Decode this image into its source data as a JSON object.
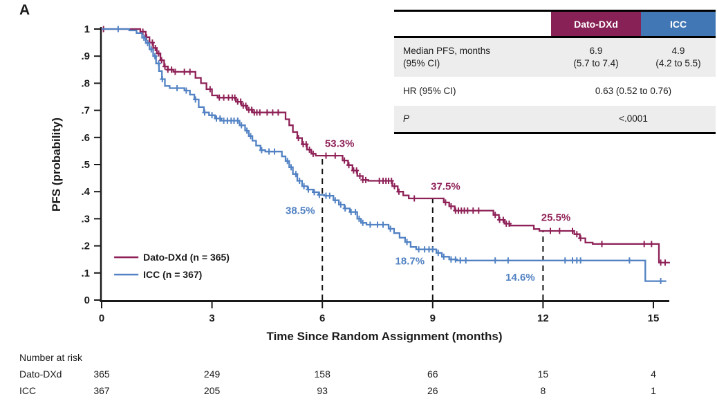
{
  "panel_label": "A",
  "colors": {
    "dato_line": "#8E2157",
    "icc_line": "#5282C3",
    "dato_header_bg": "#882155",
    "icc_header_bg": "#4277B5",
    "shaded_row_bg": "#EDEDED",
    "axis": "#1a1a1a",
    "dashed_line": "#111111"
  },
  "stats_table": {
    "header": {
      "dato": "Dato-DXd",
      "icc": "ICC"
    },
    "median_row": {
      "label_line1": "Median PFS, months",
      "label_line2": "(95% CI)",
      "dato_line1": "6.9",
      "dato_line2": "(5.7 to 7.4)",
      "icc_line1": "4.9",
      "icc_line2": "(4.2 to 5.5)"
    },
    "hr_row": {
      "label": "HR (95% CI)",
      "value": "0.63 (0.52 to 0.76)"
    },
    "p_row": {
      "label": "P",
      "value": "<.0001"
    }
  },
  "risk_table": {
    "title": "Number at risk",
    "rows": [
      {
        "label": "Dato-DXd",
        "values": [
          365,
          249,
          158,
          66,
          15,
          4
        ]
      },
      {
        "label": "ICC",
        "values": [
          367,
          205,
          93,
          26,
          8,
          1
        ]
      }
    ]
  },
  "chart_data": {
    "type": "line",
    "subtype": "kaplan-meier-step",
    "title": "",
    "xlabel": "Time Since Random Assignment (months)",
    "ylabel": "PFS (probability)",
    "xlim": [
      0,
      15.6
    ],
    "ylim": [
      0,
      1
    ],
    "grid": false,
    "legend_position": "lower-left-inside",
    "xticks": [
      0,
      3,
      6,
      9,
      12,
      15
    ],
    "yticks": [
      0,
      0.1,
      0.2,
      0.3,
      0.4,
      0.5,
      0.6,
      0.7,
      0.8,
      0.9,
      1
    ],
    "ytick_labels": [
      "0",
      ".1",
      ".2",
      ".3",
      ".4",
      ".5",
      ".6",
      ".7",
      ".8",
      ".9",
      "1"
    ],
    "reference_lines": [
      {
        "x": 6,
        "y_top": 0.533
      },
      {
        "x": 9,
        "y_top": 0.375
      },
      {
        "x": 12,
        "y_top": 0.255
      }
    ],
    "annotations": [
      {
        "label": "53.3%",
        "x": 6.07,
        "y": 0.565,
        "anchor": "start",
        "series": "dato"
      },
      {
        "label": "37.5%",
        "x": 8.95,
        "y": 0.407,
        "anchor": "start",
        "series": "dato"
      },
      {
        "label": "25.5%",
        "x": 11.95,
        "y": 0.292,
        "anchor": "start",
        "series": "dato"
      },
      {
        "label": "38.5%",
        "x": 5.8,
        "y": 0.318,
        "anchor": "end",
        "series": "icc"
      },
      {
        "label": "18.7%",
        "x": 8.78,
        "y": 0.131,
        "anchor": "end",
        "series": "icc"
      },
      {
        "label": "14.6%",
        "x": 11.78,
        "y": 0.072,
        "anchor": "end",
        "series": "icc"
      }
    ],
    "series": [
      {
        "id": "dato",
        "name": "Dato-DXd (n = 365)",
        "color": "#8E2157",
        "landmark_estimates": {
          "6_months": 0.533,
          "9_months": 0.375,
          "12_months": 0.255
        },
        "points": [
          [
            0,
            1
          ],
          [
            1.05,
            1
          ],
          [
            1.05,
            0.99
          ],
          [
            1.2,
            0.99
          ],
          [
            1.2,
            0.97
          ],
          [
            1.3,
            0.97
          ],
          [
            1.3,
            0.95
          ],
          [
            1.4,
            0.95
          ],
          [
            1.4,
            0.93
          ],
          [
            1.5,
            0.93
          ],
          [
            1.5,
            0.91
          ],
          [
            1.6,
            0.91
          ],
          [
            1.6,
            0.885
          ],
          [
            1.7,
            0.885
          ],
          [
            1.7,
            0.862
          ],
          [
            1.8,
            0.862
          ],
          [
            1.8,
            0.85
          ],
          [
            1.95,
            0.85
          ],
          [
            1.95,
            0.842
          ],
          [
            2.55,
            0.842
          ],
          [
            2.55,
            0.82
          ],
          [
            2.7,
            0.82
          ],
          [
            2.7,
            0.8
          ],
          [
            2.85,
            0.8
          ],
          [
            2.85,
            0.778
          ],
          [
            3,
            0.778
          ],
          [
            3,
            0.755
          ],
          [
            3.15,
            0.755
          ],
          [
            3.15,
            0.747
          ],
          [
            3.65,
            0.747
          ],
          [
            3.65,
            0.732
          ],
          [
            3.8,
            0.732
          ],
          [
            3.8,
            0.717
          ],
          [
            3.95,
            0.717
          ],
          [
            3.95,
            0.702
          ],
          [
            4.1,
            0.702
          ],
          [
            4.1,
            0.692
          ],
          [
            5,
            0.692
          ],
          [
            5,
            0.667
          ],
          [
            5.1,
            0.667
          ],
          [
            5.1,
            0.645
          ],
          [
            5.2,
            0.645
          ],
          [
            5.2,
            0.62
          ],
          [
            5.32,
            0.62
          ],
          [
            5.32,
            0.598
          ],
          [
            5.45,
            0.598
          ],
          [
            5.45,
            0.575
          ],
          [
            5.58,
            0.575
          ],
          [
            5.58,
            0.555
          ],
          [
            5.7,
            0.555
          ],
          [
            5.7,
            0.54
          ],
          [
            5.82,
            0.54
          ],
          [
            5.82,
            0.533
          ],
          [
            6.55,
            0.533
          ],
          [
            6.55,
            0.515
          ],
          [
            6.7,
            0.515
          ],
          [
            6.7,
            0.498
          ],
          [
            6.82,
            0.498
          ],
          [
            6.82,
            0.478
          ],
          [
            6.95,
            0.478
          ],
          [
            6.95,
            0.458
          ],
          [
            7.1,
            0.458
          ],
          [
            7.1,
            0.443
          ],
          [
            7.25,
            0.443
          ],
          [
            7.25,
            0.44
          ],
          [
            7.9,
            0.44
          ],
          [
            7.9,
            0.42
          ],
          [
            8.05,
            0.42
          ],
          [
            8.05,
            0.4
          ],
          [
            8.2,
            0.4
          ],
          [
            8.2,
            0.386
          ],
          [
            8.35,
            0.386
          ],
          [
            8.35,
            0.375
          ],
          [
            9.3,
            0.375
          ],
          [
            9.3,
            0.36
          ],
          [
            9.45,
            0.36
          ],
          [
            9.45,
            0.346
          ],
          [
            9.6,
            0.346
          ],
          [
            9.6,
            0.33
          ],
          [
            10.65,
            0.33
          ],
          [
            10.65,
            0.314
          ],
          [
            10.8,
            0.314
          ],
          [
            10.8,
            0.296
          ],
          [
            10.95,
            0.296
          ],
          [
            10.95,
            0.282
          ],
          [
            11.1,
            0.282
          ],
          [
            11.1,
            0.275
          ],
          [
            11.75,
            0.275
          ],
          [
            11.75,
            0.262
          ],
          [
            11.9,
            0.262
          ],
          [
            11.9,
            0.255
          ],
          [
            12.85,
            0.255
          ],
          [
            12.85,
            0.243
          ],
          [
            13,
            0.243
          ],
          [
            13,
            0.228
          ],
          [
            13.15,
            0.228
          ],
          [
            13.15,
            0.212
          ],
          [
            13.35,
            0.212
          ],
          [
            13.35,
            0.207
          ],
          [
            15.15,
            0.207
          ],
          [
            15.15,
            0.138
          ],
          [
            15.45,
            0.138
          ]
        ],
        "censor_marks": [
          0.05,
          1.12,
          1.22,
          1.3,
          1.38,
          1.46,
          1.55,
          1.63,
          1.72,
          1.8,
          1.9,
          2.0,
          2.25,
          2.4,
          2.95,
          3.2,
          3.32,
          3.45,
          3.55,
          3.62,
          3.7,
          3.78,
          3.85,
          3.92,
          4.0,
          4.08,
          4.15,
          4.22,
          4.3,
          4.5,
          4.65,
          4.8,
          5.35,
          5.48,
          5.56,
          5.65,
          5.75,
          6.1,
          6.35,
          6.6,
          6.72,
          6.85,
          6.93,
          7.02,
          7.1,
          7.18,
          7.55,
          7.65,
          7.73,
          7.8,
          7.88,
          7.96,
          8.08,
          8.5,
          9.35,
          9.5,
          9.62,
          9.7,
          9.78,
          9.86,
          9.95,
          10.1,
          10.25,
          10.7,
          10.82,
          10.92,
          11.0,
          11.08,
          12.2,
          12.45,
          12.8,
          12.92,
          13.02,
          13.6,
          14.75,
          14.95,
          15.2,
          15.32
        ]
      },
      {
        "id": "icc",
        "name": "ICC (n = 367)",
        "color": "#5282C3",
        "landmark_estimates": {
          "6_months": 0.385,
          "9_months": 0.187,
          "12_months": 0.146
        },
        "points": [
          [
            0,
            1
          ],
          [
            0.75,
            1
          ],
          [
            0.75,
            0.995
          ],
          [
            0.95,
            0.995
          ],
          [
            0.95,
            0.985
          ],
          [
            1.1,
            0.985
          ],
          [
            1.1,
            0.968
          ],
          [
            1.2,
            0.968
          ],
          [
            1.2,
            0.948
          ],
          [
            1.3,
            0.948
          ],
          [
            1.3,
            0.925
          ],
          [
            1.4,
            0.925
          ],
          [
            1.4,
            0.9
          ],
          [
            1.48,
            0.9
          ],
          [
            1.48,
            0.873
          ],
          [
            1.56,
            0.873
          ],
          [
            1.56,
            0.845
          ],
          [
            1.64,
            0.845
          ],
          [
            1.64,
            0.815
          ],
          [
            1.72,
            0.815
          ],
          [
            1.72,
            0.79
          ],
          [
            1.85,
            0.79
          ],
          [
            1.85,
            0.782
          ],
          [
            2.25,
            0.782
          ],
          [
            2.25,
            0.773
          ],
          [
            2.4,
            0.773
          ],
          [
            2.4,
            0.758
          ],
          [
            2.52,
            0.758
          ],
          [
            2.52,
            0.74
          ],
          [
            2.64,
            0.74
          ],
          [
            2.64,
            0.712
          ],
          [
            2.78,
            0.712
          ],
          [
            2.78,
            0.692
          ],
          [
            2.92,
            0.692
          ],
          [
            2.92,
            0.682
          ],
          [
            3.08,
            0.682
          ],
          [
            3.08,
            0.67
          ],
          [
            3.25,
            0.67
          ],
          [
            3.25,
            0.662
          ],
          [
            3.75,
            0.662
          ],
          [
            3.75,
            0.645
          ],
          [
            3.9,
            0.645
          ],
          [
            3.9,
            0.625
          ],
          [
            4,
            0.625
          ],
          [
            4,
            0.605
          ],
          [
            4.1,
            0.605
          ],
          [
            4.1,
            0.588
          ],
          [
            4.2,
            0.588
          ],
          [
            4.2,
            0.57
          ],
          [
            4.32,
            0.57
          ],
          [
            4.32,
            0.553
          ],
          [
            4.45,
            0.553
          ],
          [
            4.45,
            0.548
          ],
          [
            4.9,
            0.548
          ],
          [
            4.9,
            0.53
          ],
          [
            5,
            0.53
          ],
          [
            5,
            0.513
          ],
          [
            5.1,
            0.513
          ],
          [
            5.1,
            0.49
          ],
          [
            5.2,
            0.49
          ],
          [
            5.2,
            0.465
          ],
          [
            5.32,
            0.465
          ],
          [
            5.32,
            0.44
          ],
          [
            5.45,
            0.44
          ],
          [
            5.45,
            0.42
          ],
          [
            5.6,
            0.42
          ],
          [
            5.6,
            0.408
          ],
          [
            5.75,
            0.408
          ],
          [
            5.75,
            0.398
          ],
          [
            5.9,
            0.398
          ],
          [
            5.9,
            0.388
          ],
          [
            6.05,
            0.388
          ],
          [
            6.05,
            0.385
          ],
          [
            6.3,
            0.385
          ],
          [
            6.3,
            0.368
          ],
          [
            6.45,
            0.368
          ],
          [
            6.45,
            0.352
          ],
          [
            6.6,
            0.352
          ],
          [
            6.6,
            0.338
          ],
          [
            6.75,
            0.338
          ],
          [
            6.75,
            0.325
          ],
          [
            6.95,
            0.325
          ],
          [
            6.95,
            0.3
          ],
          [
            7.05,
            0.3
          ],
          [
            7.05,
            0.285
          ],
          [
            7.2,
            0.285
          ],
          [
            7.2,
            0.278
          ],
          [
            7.8,
            0.278
          ],
          [
            7.8,
            0.263
          ],
          [
            7.95,
            0.263
          ],
          [
            7.95,
            0.247
          ],
          [
            8.1,
            0.247
          ],
          [
            8.1,
            0.23
          ],
          [
            8.25,
            0.23
          ],
          [
            8.25,
            0.214
          ],
          [
            8.4,
            0.214
          ],
          [
            8.4,
            0.196
          ],
          [
            8.55,
            0.196
          ],
          [
            8.55,
            0.187
          ],
          [
            9.1,
            0.187
          ],
          [
            9.1,
            0.174
          ],
          [
            9.25,
            0.174
          ],
          [
            9.25,
            0.16
          ],
          [
            9.45,
            0.16
          ],
          [
            9.45,
            0.15
          ],
          [
            9.65,
            0.15
          ],
          [
            9.65,
            0.146
          ],
          [
            14.78,
            0.146
          ],
          [
            14.78,
            0.07
          ],
          [
            15.35,
            0.07
          ]
        ],
        "censor_marks": [
          0.45,
          1.15,
          1.25,
          1.35,
          1.45,
          1.55,
          1.65,
          2.05,
          2.3,
          2.55,
          2.8,
          3.0,
          3.12,
          3.22,
          3.32,
          3.42,
          3.52,
          3.6,
          3.7,
          3.8,
          3.95,
          4.05,
          4.35,
          4.55,
          4.7,
          5.05,
          5.15,
          5.28,
          5.38,
          5.5,
          5.62,
          5.78,
          5.92,
          6.1,
          6.2,
          6.35,
          6.5,
          6.62,
          6.78,
          6.9,
          7.0,
          7.1,
          7.3,
          7.5,
          7.65,
          7.85,
          8.3,
          8.62,
          8.78,
          8.9,
          9.0,
          9.15,
          9.3,
          9.5,
          9.62,
          9.75,
          9.9,
          10.7,
          11.05,
          12.6,
          12.8,
          12.92,
          13.02,
          14.35,
          15.2
        ]
      }
    ]
  }
}
